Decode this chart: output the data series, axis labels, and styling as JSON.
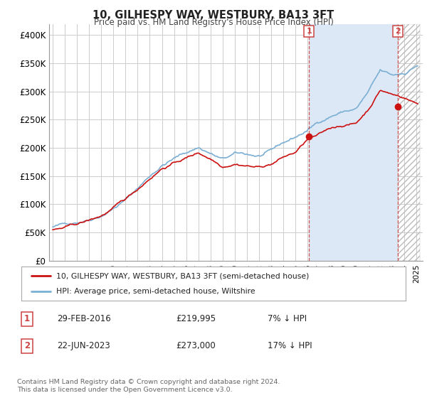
{
  "title": "10, GILHESPY WAY, WESTBURY, BA13 3FT",
  "subtitle": "Price paid vs. HM Land Registry's House Price Index (HPI)",
  "ylim": [
    0,
    420000
  ],
  "yticks": [
    0,
    50000,
    100000,
    150000,
    200000,
    250000,
    300000,
    350000,
    400000
  ],
  "ytick_labels": [
    "£0",
    "£50K",
    "£100K",
    "£150K",
    "£200K",
    "£250K",
    "£300K",
    "£350K",
    "£400K"
  ],
  "hpi_color": "#7bafd4",
  "price_color": "#cc1111",
  "marker1_year": 2016.12,
  "marker1_price": 219995,
  "marker2_year": 2023.47,
  "marker2_price": 273000,
  "vline_color": "#cc4444",
  "shade_color": "#dce8f5",
  "hatch_color": "#bbbbbb",
  "legend_label1": "10, GILHESPY WAY, WESTBURY, BA13 3FT (semi-detached house)",
  "legend_label2": "HPI: Average price, semi-detached house, Wiltshire",
  "table_row1": [
    "1",
    "29-FEB-2016",
    "£219,995",
    "7% ↓ HPI"
  ],
  "table_row2": [
    "2",
    "22-JUN-2023",
    "£273,000",
    "17% ↓ HPI"
  ],
  "footer": "Contains HM Land Registry data © Crown copyright and database right 2024.\nThis data is licensed under the Open Government Licence v3.0.",
  "background_color": "#ffffff",
  "grid_color": "#cccccc"
}
